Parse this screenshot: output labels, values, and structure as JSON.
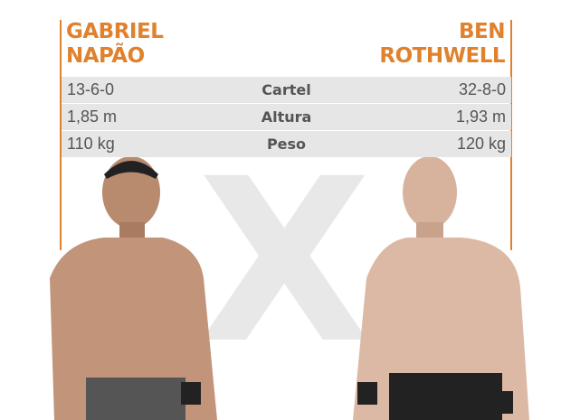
{
  "fighter_left": {
    "first": "GABRIEL",
    "last": "NAPÃO",
    "record": "13-6-0",
    "height": "1,85 m",
    "weight": "110 kg"
  },
  "fighter_right": {
    "first": "BEN",
    "last": "ROTHWELL",
    "record": "32-8-0",
    "height": "1,93 m",
    "weight": "120 kg"
  },
  "labels": {
    "record": "Cartel",
    "height": "Altura",
    "weight": "Peso"
  },
  "versus": "X",
  "colors": {
    "accent": "#e0812e",
    "row_bg": "#e6e6e6"
  }
}
